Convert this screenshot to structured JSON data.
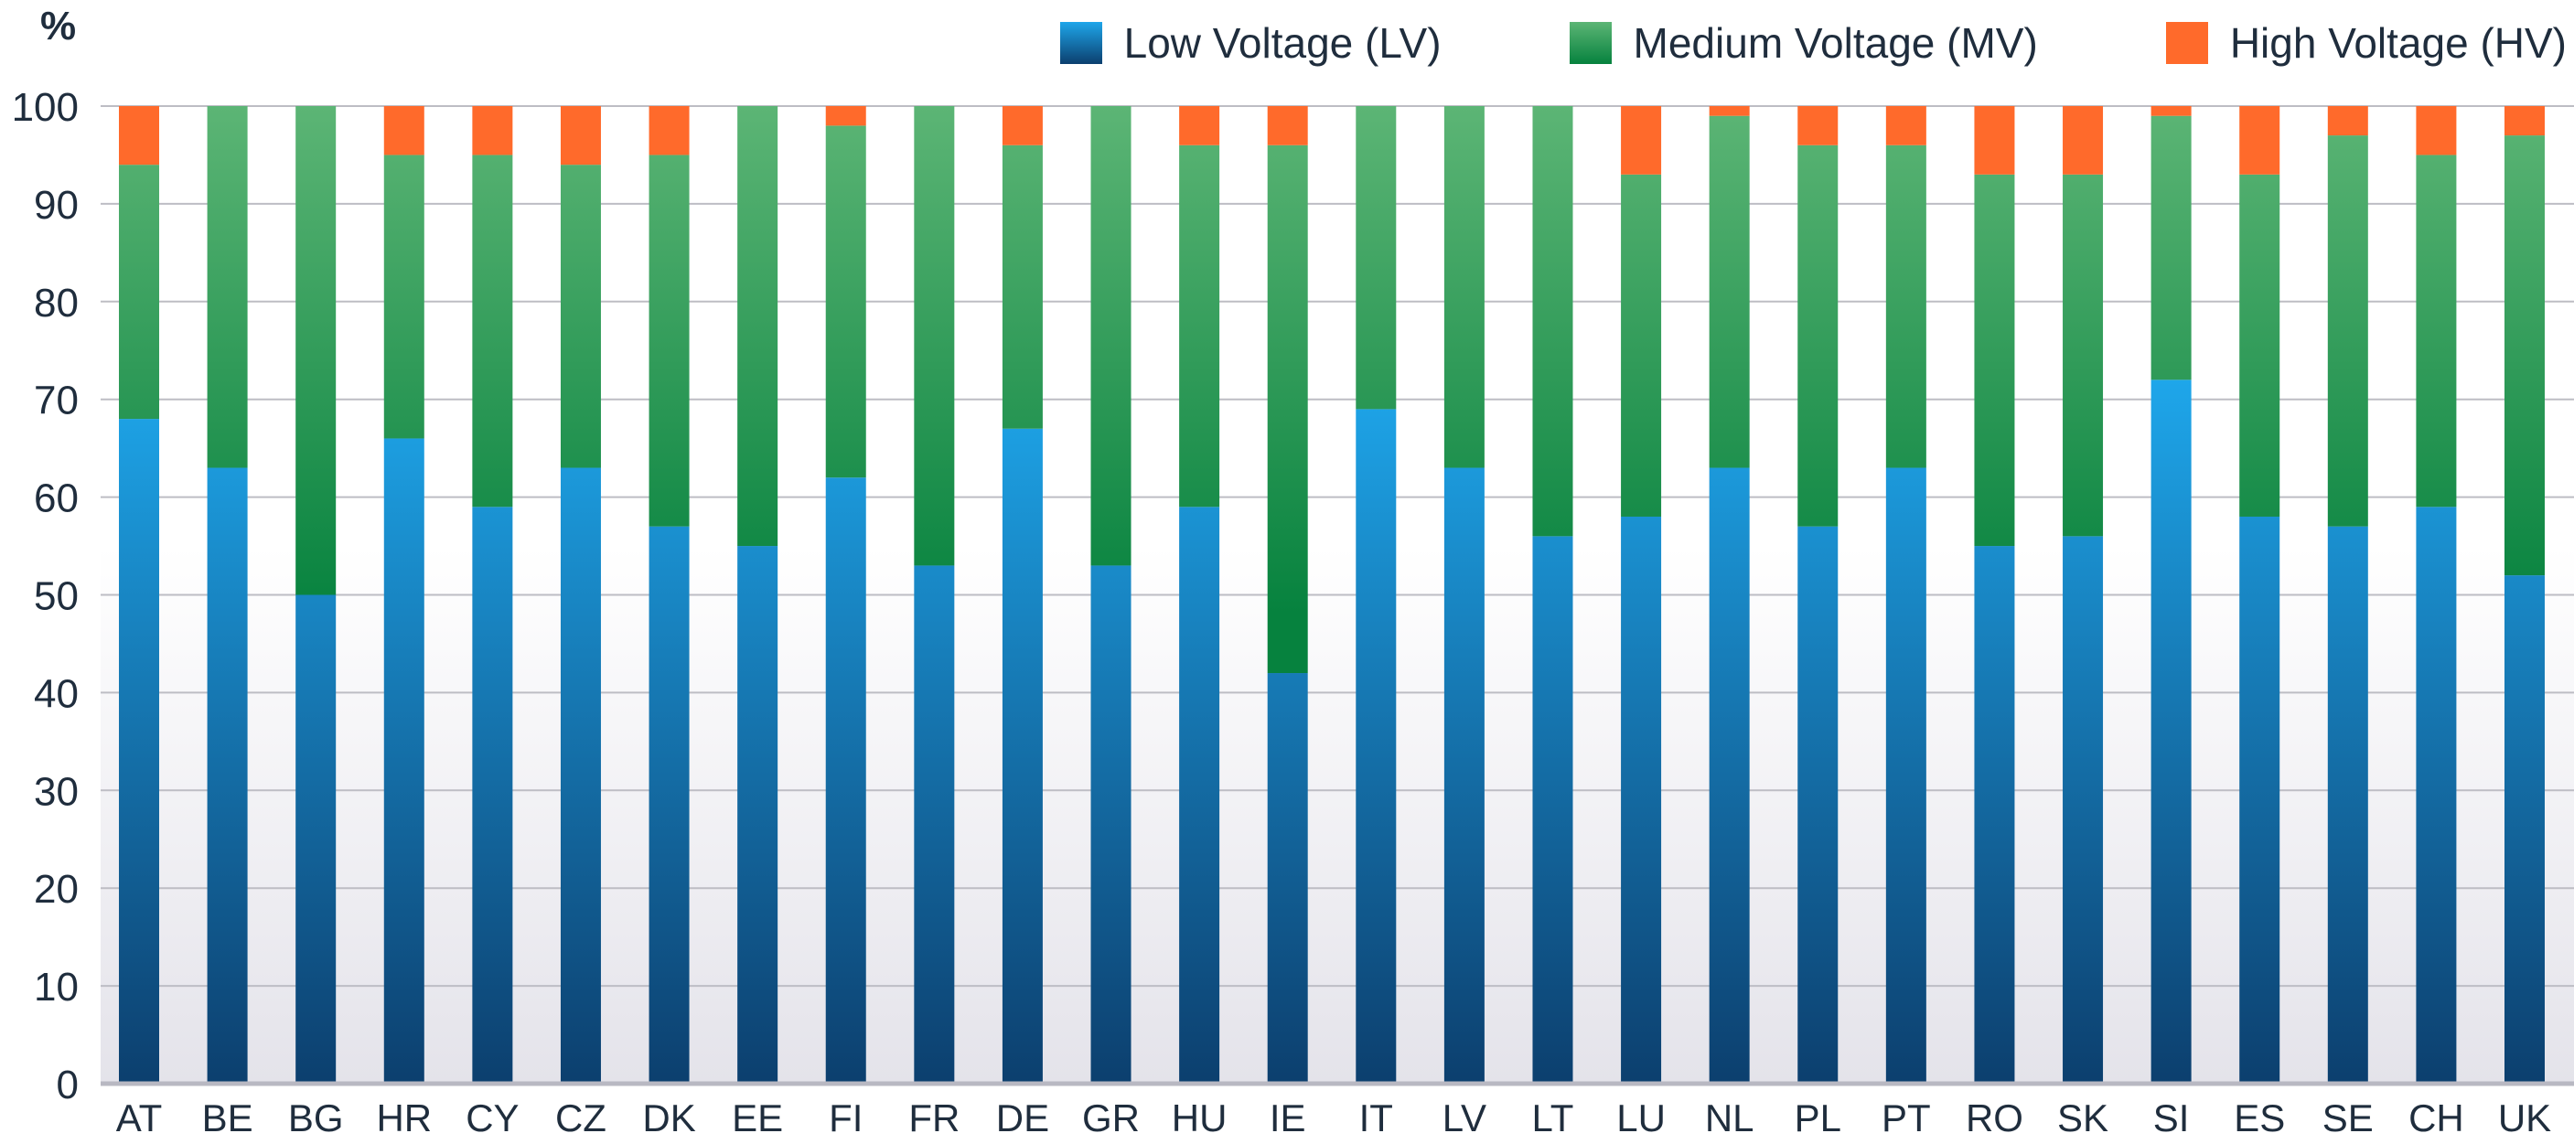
{
  "chart_data": {
    "type": "bar",
    "stacked": true,
    "ylabel": "%",
    "ylim": [
      0,
      100
    ],
    "yticks": [
      0,
      10,
      20,
      30,
      40,
      50,
      60,
      70,
      80,
      90,
      100
    ],
    "grid": true,
    "legend_position": "top-right",
    "categories": [
      "AT",
      "BE",
      "BG",
      "HR",
      "CY",
      "CZ",
      "DK",
      "EE",
      "FI",
      "FR",
      "DE",
      "GR",
      "HU",
      "IE",
      "IT",
      "LV",
      "LT",
      "LU",
      "NL",
      "PL",
      "PT",
      "RO",
      "SK",
      "SI",
      "ES",
      "SE",
      "CH",
      "UK"
    ],
    "series": [
      {
        "name": "Low Voltage (LV)",
        "color_top": "#1ea6ea",
        "color_bottom": "#0c3f6e",
        "values": [
          68,
          63,
          50,
          66,
          59,
          63,
          57,
          55,
          62,
          53,
          67,
          53,
          59,
          42,
          69,
          63,
          56,
          58,
          63,
          57,
          63,
          55,
          56,
          72,
          58,
          57,
          59,
          52
        ]
      },
      {
        "name": "Medium Voltage (MV)",
        "color_top": "#5cb575",
        "color_bottom": "#06823e",
        "values": [
          26,
          37,
          50,
          29,
          36,
          31,
          38,
          45,
          36,
          47,
          29,
          47,
          37,
          54,
          31,
          37,
          44,
          35,
          36,
          39,
          33,
          38,
          37,
          27,
          35,
          40,
          36,
          45
        ]
      },
      {
        "name": "High Voltage (HV)",
        "color": "#ff6a2b",
        "values": [
          6,
          0,
          0,
          5,
          5,
          6,
          5,
          0,
          2,
          0,
          4,
          0,
          4,
          4,
          0,
          0,
          0,
          7,
          1,
          4,
          4,
          7,
          7,
          1,
          7,
          3,
          5,
          3
        ]
      }
    ]
  }
}
